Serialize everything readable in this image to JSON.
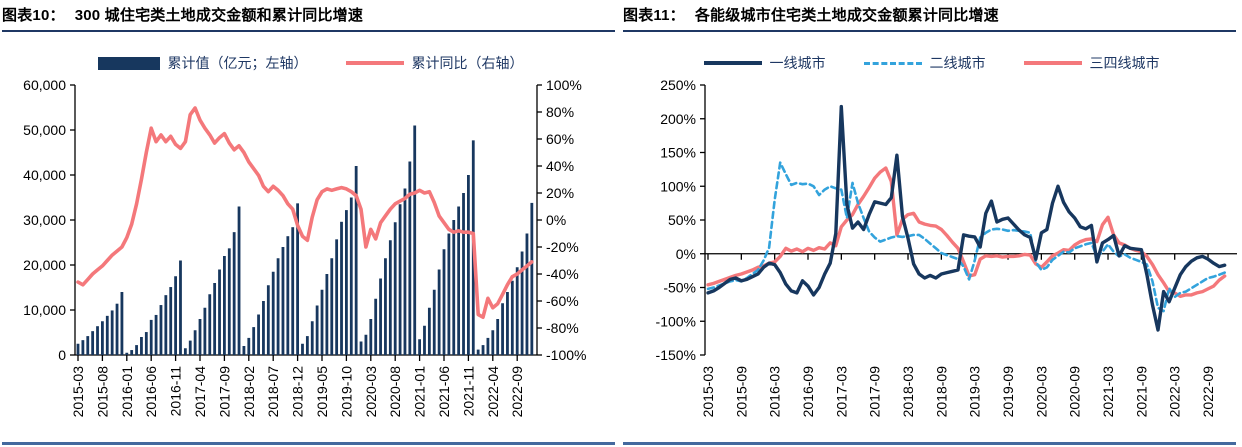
{
  "figures": [
    {
      "title_prefix": "图表10：",
      "title": "300 城住宅类土地成交金额和累计同比增速",
      "legend": [
        {
          "label": "累计值（亿元；左轴）",
          "swatch": "bar",
          "color": "#17375E"
        },
        {
          "label": "累计同比（右轴）",
          "swatch": "line",
          "color": "#F4787B"
        }
      ]
    },
    {
      "title_prefix": "图表11：",
      "title": "各能级城市住宅类土地成交金额累计同比增速",
      "legend": [
        {
          "label": "一线城市",
          "swatch": "line-navy",
          "color": "#17375E"
        },
        {
          "label": "二线城市",
          "swatch": "line-dashed",
          "color": "#33A3DC"
        },
        {
          "label": "三四线城市",
          "swatch": "line",
          "color": "#F4787B"
        }
      ]
    }
  ],
  "colors": {
    "navy": "#17375E",
    "salmon": "#F4787B",
    "lightblue": "#33A3DC",
    "rule": "#1F3864",
    "bottom_bar": "#44699E"
  },
  "chart_data": [
    {
      "type": "bar",
      "title": "300城住宅类土地成交金额和累计同比增速",
      "x_start": "2015-03",
      "x_tick_labels": [
        "2015-03",
        "2015-08",
        "2016-01",
        "2016-06",
        "2016-11",
        "2017-04",
        "2017-09",
        "2018-02",
        "2018-07",
        "2018-12",
        "2019-05",
        "2019-10",
        "2020-03",
        "2020-08",
        "2021-01",
        "2021-06",
        "2021-11",
        "2022-04",
        "2022-09"
      ],
      "left_axis": {
        "min": 0,
        "max": 60000,
        "step": 10000,
        "tick_labels": [
          "60,000",
          "50,000",
          "40,000",
          "30,000",
          "20,000",
          "10,000",
          "0"
        ]
      },
      "right_axis": {
        "min": -100,
        "max": 100,
        "step": 20,
        "tick_labels": [
          "100%",
          "80%",
          "60%",
          "40%",
          "20%",
          "0%",
          "-20%",
          "-40%",
          "-60%",
          "-80%",
          "-100%"
        ]
      },
      "bars": {
        "name": "累计值（亿元；左轴）",
        "values": [
          2500,
          3300,
          4200,
          5300,
          6400,
          7500,
          8700,
          9900,
          11400,
          14000,
          500,
          1100,
          2200,
          4000,
          5100,
          7800,
          8900,
          11100,
          13300,
          15100,
          17500,
          21000,
          1500,
          3200,
          5500,
          8000,
          10500,
          13500,
          16000,
          19000,
          22000,
          23700,
          27300,
          33000,
          2000,
          3800,
          6200,
          9000,
          12000,
          15500,
          18500,
          21500,
          24000,
          26400,
          28400,
          33700,
          2500,
          4200,
          7500,
          11000,
          14500,
          18000,
          21500,
          25700,
          29600,
          32200,
          35000,
          42000,
          3000,
          4500,
          8000,
          12500,
          17000,
          21500,
          25500,
          29500,
          33500,
          37000,
          43000,
          51000,
          3500,
          6500,
          10500,
          14500,
          19000,
          23500,
          27000,
          30000,
          33000,
          36000,
          40000,
          47700,
          1200,
          2200,
          3800,
          5500,
          8000,
          11500,
          14000,
          16500,
          19500,
          23000,
          27000,
          33800
        ]
      },
      "line": {
        "name": "累计同比（右轴）",
        "values_pct": [
          -46,
          -48,
          -44,
          -40,
          -37,
          -34,
          -30,
          -26,
          -23,
          -20,
          -13,
          -3,
          12,
          30,
          50,
          68,
          58,
          63,
          58,
          62,
          56,
          53,
          58,
          78,
          83,
          74,
          68,
          63,
          57,
          61,
          64,
          57,
          52,
          55,
          50,
          43,
          38,
          33,
          25,
          21,
          25,
          22,
          18,
          12,
          8,
          -4,
          -12,
          -15,
          2,
          15,
          21,
          23,
          22,
          23,
          24,
          23,
          21,
          18,
          8,
          -20,
          -7,
          -14,
          -2,
          3,
          8,
          12,
          14,
          16,
          19,
          20,
          22,
          20,
          21,
          13,
          3,
          -2,
          -7,
          -9,
          -8,
          -9,
          -9,
          -10,
          -70,
          -72,
          -58,
          -65,
          -62,
          -55,
          -48,
          -42,
          -40,
          -37,
          -34,
          -31
        ]
      }
    },
    {
      "type": "line",
      "title": "各能级城市住宅类土地成交金额累计同比增速",
      "x_start": "2015-03",
      "x_tick_labels": [
        "2015-03",
        "2015-09",
        "2016-03",
        "2016-09",
        "2017-03",
        "2017-09",
        "2018-03",
        "2018-09",
        "2019-03",
        "2019-09",
        "2020-03",
        "2020-09",
        "2021-03",
        "2021-09",
        "2022-03",
        "2022-09"
      ],
      "y_axis": {
        "min": -150,
        "max": 250,
        "step": 50,
        "tick_labels": [
          "250%",
          "200%",
          "150%",
          "100%",
          "50%",
          "0%",
          "-50%",
          "-100%",
          "-150%"
        ]
      },
      "series": [
        {
          "name": "一线城市",
          "style": "solid",
          "color": "#17375E",
          "values_pct": [
            -58,
            -55,
            -50,
            -44,
            -38,
            -36,
            -40,
            -38,
            -34,
            -30,
            -20,
            -14,
            -16,
            -28,
            -45,
            -55,
            -58,
            -40,
            -48,
            -61,
            -50,
            -30,
            -14,
            30,
            218,
            73,
            38,
            47,
            36,
            58,
            77,
            75,
            73,
            83,
            146,
            55,
            23,
            -15,
            -30,
            -36,
            -32,
            -36,
            -30,
            -28,
            -26,
            -24,
            28,
            26,
            25,
            10,
            60,
            78,
            47,
            51,
            53,
            44,
            35,
            28,
            24,
            -8,
            31,
            36,
            75,
            100,
            76,
            62,
            53,
            40,
            37,
            42,
            -12,
            16,
            21,
            27,
            -3,
            12,
            8,
            7,
            6,
            -31,
            -76,
            -113,
            -56,
            -71,
            -51,
            -31,
            -19,
            -11,
            -6,
            -4,
            -8,
            -14,
            -19,
            -17
          ]
        },
        {
          "name": "二线城市",
          "style": "dashed",
          "color": "#33A3DC",
          "values_pct": [
            -52,
            -50,
            -47,
            -44,
            -41,
            -39,
            -41,
            -36,
            -30,
            -24,
            -10,
            9,
            80,
            135,
            118,
            102,
            105,
            103,
            104,
            100,
            87,
            95,
            100,
            97,
            95,
            53,
            105,
            75,
            53,
            33,
            24,
            18,
            21,
            24,
            26,
            25,
            26,
            28,
            28,
            22,
            15,
            8,
            1,
            -2,
            -5,
            -8,
            -19,
            -38,
            -10,
            24,
            31,
            36,
            37,
            36,
            34,
            35,
            34,
            33,
            31,
            -12,
            -24,
            -20,
            -9,
            -3,
            3,
            2,
            8,
            11,
            14,
            16,
            -4,
            3,
            14,
            3,
            -4,
            -1,
            -6,
            -9,
            -12,
            -16,
            -41,
            -80,
            -85,
            -51,
            -64,
            -58,
            -56,
            -51,
            -46,
            -41,
            -36,
            -34,
            -31,
            -28
          ]
        },
        {
          "name": "三四线城市",
          "style": "solid",
          "color": "#F4787B",
          "values_pct": [
            -46,
            -44,
            -41,
            -38,
            -35,
            -32,
            -30,
            -27,
            -24,
            -20,
            -18,
            -14,
            -12,
            -4,
            8,
            4,
            7,
            3,
            8,
            5,
            9,
            7,
            16,
            12,
            40,
            50,
            58,
            73,
            85,
            98,
            112,
            121,
            127,
            107,
            28,
            51,
            58,
            60,
            47,
            44,
            42,
            41,
            36,
            27,
            17,
            8,
            -12,
            -33,
            -31,
            -8,
            -3,
            -4,
            -3,
            -5,
            -4,
            -4,
            -3,
            -1,
            -2,
            -15,
            -20,
            -12,
            -3,
            1,
            6,
            5,
            13,
            18,
            21,
            22,
            18,
            43,
            54,
            28,
            16,
            13,
            8,
            5,
            3,
            -4,
            -16,
            -31,
            -43,
            -56,
            -58,
            -63,
            -61,
            -61,
            -58,
            -56,
            -52,
            -48,
            -39,
            -33
          ]
        }
      ]
    }
  ]
}
